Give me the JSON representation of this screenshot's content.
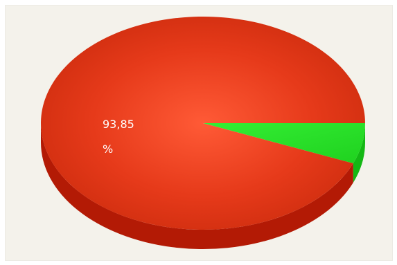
{
  "chart_data": {
    "type": "pie",
    "style": "3d",
    "slices": [
      {
        "label": "93,85 %",
        "value": 93.85,
        "color": "#e8401f"
      },
      {
        "label": "",
        "value": 6.15,
        "color": "#22dd22"
      }
    ],
    "data_labels": {
      "main_value": "93,85",
      "main_unit": "%"
    },
    "legend": "none",
    "background": "#f4f2eb"
  }
}
